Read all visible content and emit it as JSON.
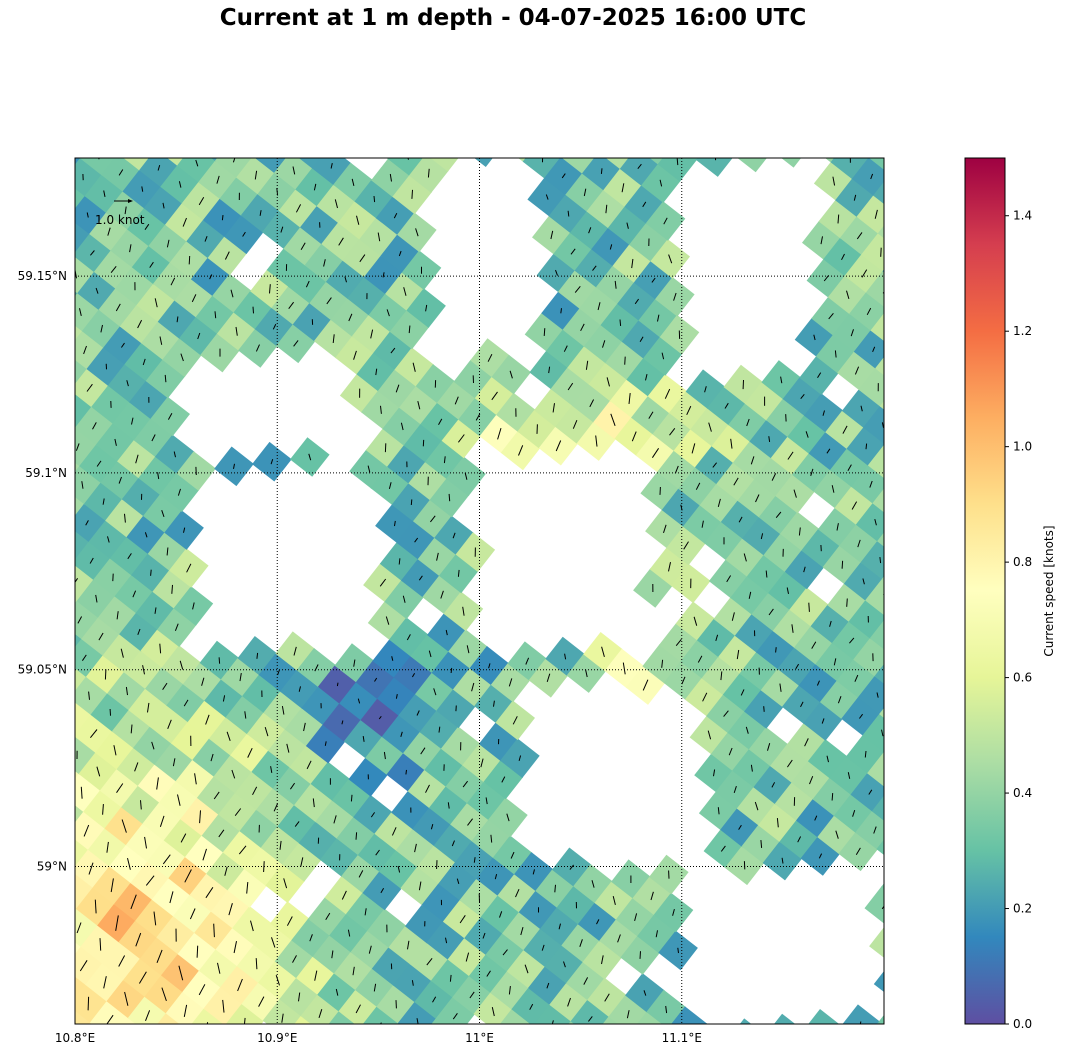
{
  "title": "Current at 1 m depth - 04-07-2025 16:00 UTC",
  "map": {
    "lon_labels": [
      "10.8°E",
      "10.9°E",
      "11°E",
      "11.1°E"
    ],
    "lat_labels": [
      "59.15°N",
      "59.1°N",
      "59.05°N",
      "59°N"
    ],
    "lon_values": [
      10.8,
      10.9,
      11.0,
      11.1
    ],
    "lat_values": [
      59.15,
      59.1,
      59.05,
      59.0
    ],
    "lon_range": [
      10.8,
      11.2
    ],
    "lat_range": [
      58.96,
      59.18
    ],
    "quiver_key_label": "1.0 knot",
    "quiver_key_value": 1.0
  },
  "colorbar": {
    "label": "Current speed [knots]",
    "ticks": [
      "0.0",
      "0.2",
      "0.4",
      "0.6",
      "0.8",
      "1.0",
      "1.2",
      "1.4"
    ],
    "tick_values": [
      0.0,
      0.2,
      0.4,
      0.6,
      0.8,
      1.0,
      1.2,
      1.4
    ],
    "range": [
      0,
      1.5
    ],
    "colormap": "Spectral_r",
    "colormap_stops": [
      "#5e4fa2",
      "#3288bd",
      "#66c2a5",
      "#abdda4",
      "#e6f598",
      "#ffffbf",
      "#fee08b",
      "#fdae61",
      "#f46d43",
      "#d53e4f",
      "#9e0142"
    ]
  },
  "zones": [
    {
      "name": "land-north-left",
      "lon": [
        10.855,
        10.935
      ],
      "lat": [
        59.105,
        59.13
      ]
    },
    {
      "name": "land-north-middle",
      "lon": [
        10.975,
        11.03
      ],
      "lat": [
        59.13,
        59.18
      ]
    },
    {
      "name": "land-north-right",
      "lon": [
        11.1,
        11.165
      ],
      "lat": [
        59.125,
        59.18
      ]
    },
    {
      "name": "land-center-west",
      "lon": [
        10.86,
        10.95
      ],
      "lat": [
        59.055,
        59.1
      ]
    },
    {
      "name": "land-center",
      "lon": [
        11.0,
        11.085
      ],
      "lat": [
        59.055,
        59.105
      ]
    },
    {
      "name": "land-center-southeast",
      "lon": [
        11.02,
        11.11
      ],
      "lat": [
        59.0,
        59.045
      ]
    },
    {
      "name": "land-southeast",
      "lon": [
        11.1,
        11.2
      ],
      "lat": [
        58.96,
        59.0
      ]
    }
  ]
}
